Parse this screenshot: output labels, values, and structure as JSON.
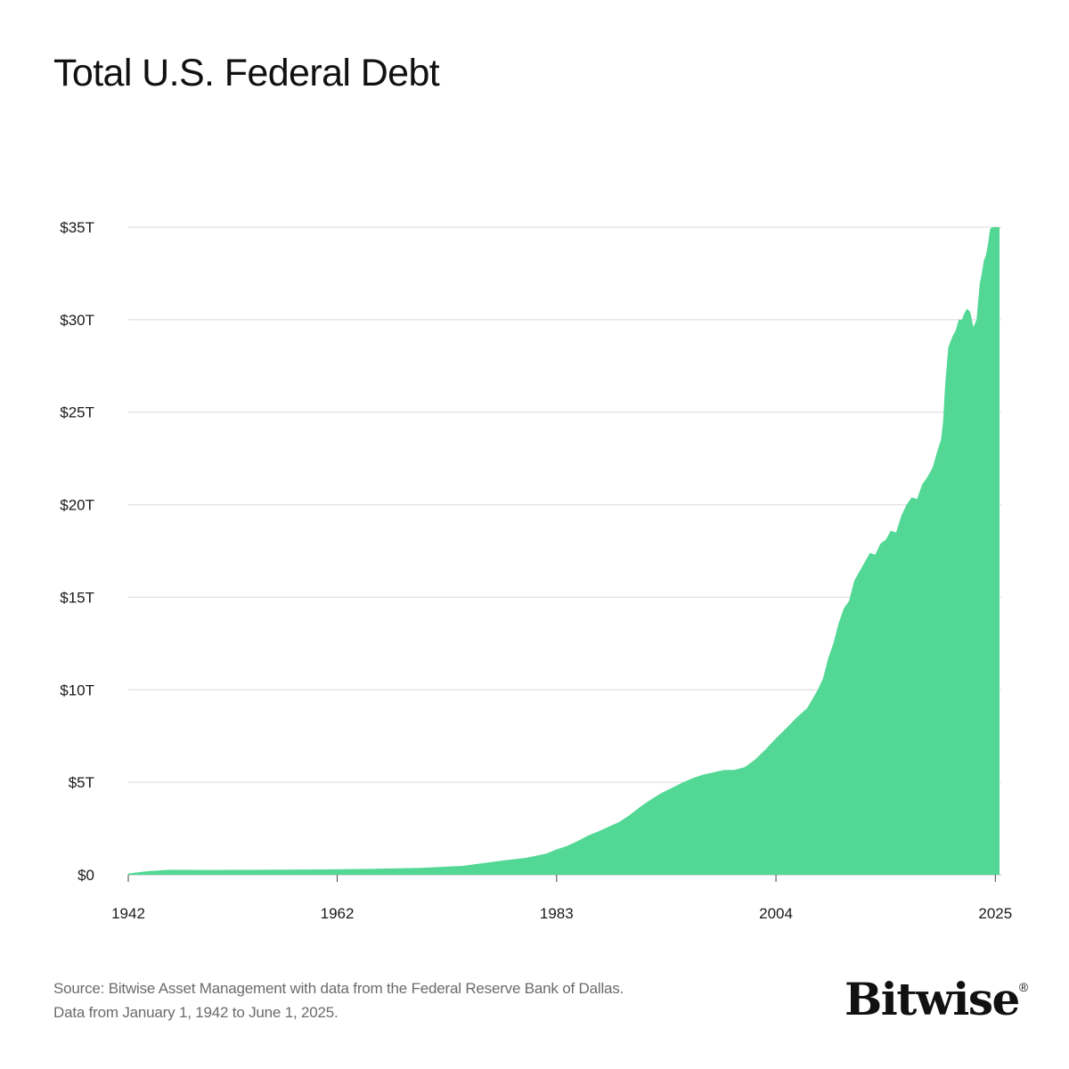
{
  "chart_data": {
    "type": "area",
    "title": "Total U.S. Federal Debt",
    "xlabel": "",
    "ylabel": "",
    "x_ticks": [
      "1942",
      "1962",
      "1983",
      "2004",
      "2025"
    ],
    "x_tick_values": [
      1942,
      1962,
      1983,
      2004,
      2025
    ],
    "y_ticks": [
      "$0",
      "$5T",
      "$10T",
      "$15T",
      "$20T",
      "$25T",
      "$30T",
      "$35T"
    ],
    "y_tick_values": [
      0,
      5,
      10,
      15,
      20,
      25,
      30,
      35
    ],
    "xlim": [
      1942,
      2025.4
    ],
    "ylim": [
      0,
      35
    ],
    "grid": true,
    "fill_color": "#52d894",
    "series": [
      {
        "x": [
          1942,
          1944,
          1946,
          1950,
          1955,
          1960,
          1965,
          1970,
          1972,
          1974,
          1976,
          1978,
          1980,
          1982,
          1983,
          1984,
          1985,
          1986,
          1987,
          1988,
          1989,
          1990,
          1991,
          1992,
          1993,
          1994,
          1995,
          1996,
          1997,
          1998,
          1999,
          2000,
          2001,
          2002,
          2003,
          2004,
          2005,
          2006,
          2007,
          2008,
          2008.5,
          2009,
          2009.5,
          2010,
          2010.5,
          2011,
          2011.5,
          2012,
          2012.5,
          2013,
          2013.5,
          2014,
          2014.5,
          2015,
          2015.5,
          2016,
          2016.5,
          2017,
          2017.5,
          2018,
          2018.5,
          2019,
          2019.5,
          2019.8,
          2020.0,
          2020.2,
          2020.5,
          2020.9,
          2021.2,
          2021.5,
          2021.8,
          2022.0,
          2022.3,
          2022.6,
          2022.9,
          2023.2,
          2023.5,
          2023.7,
          2023.9,
          2024.1,
          2024.3,
          2024.5,
          2024.7,
          2024.9,
          2025.0,
          2025.2,
          2025.4
        ],
        "values": [
          0.07,
          0.2,
          0.27,
          0.26,
          0.27,
          0.29,
          0.32,
          0.37,
          0.43,
          0.48,
          0.63,
          0.78,
          0.91,
          1.14,
          1.37,
          1.56,
          1.82,
          2.12,
          2.35,
          2.6,
          2.86,
          3.23,
          3.67,
          4.06,
          4.41,
          4.69,
          4.97,
          5.22,
          5.41,
          5.53,
          5.66,
          5.67,
          5.81,
          6.23,
          6.78,
          7.38,
          7.93,
          8.51,
          9.01,
          10.0,
          10.6,
          11.7,
          12.5,
          13.6,
          14.4,
          14.8,
          15.9,
          16.4,
          16.9,
          17.4,
          17.3,
          17.9,
          18.1,
          18.6,
          18.5,
          19.4,
          20.0,
          20.4,
          20.3,
          21.1,
          21.5,
          22.0,
          23.0,
          23.5,
          24.5,
          26.5,
          28.5,
          29.1,
          29.4,
          30.0,
          30.0,
          30.3,
          30.6,
          30.4,
          29.6,
          30.0,
          31.9,
          32.5,
          33.2,
          33.5,
          34.1,
          34.9,
          35.5,
          35.5,
          36.2,
          36.3,
          36.4
        ],
        "values_note": ""
      }
    ]
  },
  "footer": {
    "source_line1": "Source: Bitwise Asset Management with data from the Federal Reserve Bank of Dallas.",
    "source_line2": "Data from January 1, 1942 to June 1, 2025."
  },
  "logo": {
    "text": "Bitwise",
    "mark": "®"
  }
}
